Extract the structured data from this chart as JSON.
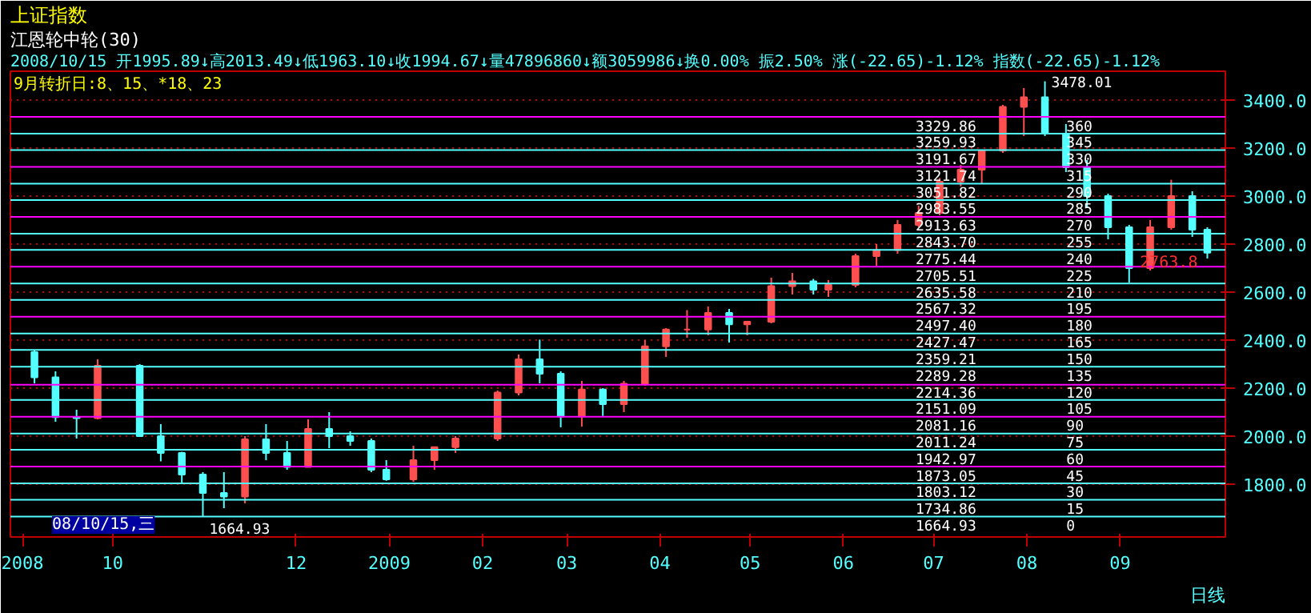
{
  "chart_data": {
    "type": "candlestick",
    "title": "上证指数",
    "subtitle": "江恩轮中轮(30)",
    "x": [
      "2008-09-05",
      "2008-09-12",
      "2008-09-19",
      "2008-09-26",
      "2008-10-10",
      "2008-10-17",
      "2008-10-24",
      "2008-10-31",
      "2008-11-07",
      "2008-11-14",
      "2008-11-21",
      "2008-11-28",
      "2008-12-05",
      "2008-12-12",
      "2008-12-19",
      "2008-12-26",
      "2008-12-31",
      "2009-01-09",
      "2009-01-16",
      "2009-01-23",
      "2009-02-06",
      "2009-02-13",
      "2009-02-20",
      "2009-02-27",
      "2009-03-06",
      "2009-03-13",
      "2009-03-20",
      "2009-03-27",
      "2009-04-03",
      "2009-04-10",
      "2009-04-17",
      "2009-04-24",
      "2009-04-30",
      "2009-05-08",
      "2009-05-15",
      "2009-05-22",
      "2009-05-27",
      "2009-06-05",
      "2009-06-12",
      "2009-06-19",
      "2009-06-26",
      "2009-07-03",
      "2009-07-10",
      "2009-07-17",
      "2009-07-24",
      "2009-07-31",
      "2009-08-07",
      "2009-08-14",
      "2009-08-21",
      "2009-08-28",
      "2009-09-04",
      "2009-09-11",
      "2009-09-18",
      "2009-09-25",
      "2009-09-30"
    ],
    "ohlc": [
      [
        2350,
        2360,
        2220,
        2245
      ],
      [
        2245,
        2270,
        2060,
        2079
      ],
      [
        2079,
        2110,
        1990,
        2075
      ],
      [
        2075,
        2320,
        2070,
        2293
      ],
      [
        2293,
        2300,
        2000,
        2000
      ],
      [
        2000,
        2050,
        1895,
        1930
      ],
      [
        1930,
        1935,
        1800,
        1840
      ],
      [
        1840,
        1850,
        1664.93,
        1763
      ],
      [
        1763,
        1850,
        1700,
        1748
      ],
      [
        1748,
        2000,
        1720,
        1987
      ],
      [
        1987,
        2050,
        1900,
        1930
      ],
      [
        1930,
        1980,
        1860,
        1872
      ],
      [
        1872,
        2070,
        1870,
        2030
      ],
      [
        2030,
        2100,
        1950,
        2000
      ],
      [
        2000,
        2020,
        1960,
        1980
      ],
      [
        1980,
        1990,
        1850,
        1860
      ],
      [
        1860,
        1900,
        1814,
        1820
      ],
      [
        1820,
        1960,
        1810,
        1900
      ],
      [
        1900,
        1955,
        1860,
        1954
      ],
      [
        1954,
        2000,
        1930,
        1990
      ],
      [
        1990,
        2190,
        1980,
        2182
      ],
      [
        2182,
        2340,
        2170,
        2320
      ],
      [
        2320,
        2402,
        2220,
        2260
      ],
      [
        2260,
        2270,
        2037,
        2082
      ],
      [
        2082,
        2230,
        2040,
        2194
      ],
      [
        2194,
        2200,
        2084,
        2133
      ],
      [
        2133,
        2230,
        2100,
        2218
      ],
      [
        2218,
        2400,
        2210,
        2374
      ],
      [
        2374,
        2450,
        2330,
        2444
      ],
      [
        2444,
        2525,
        2410,
        2444
      ],
      [
        2444,
        2540,
        2420,
        2513
      ],
      [
        2513,
        2530,
        2390,
        2466
      ],
      [
        2466,
        2480,
        2420,
        2477
      ],
      [
        2477,
        2660,
        2470,
        2625
      ],
      [
        2625,
        2680,
        2590,
        2645
      ],
      [
        2645,
        2655,
        2590,
        2610
      ],
      [
        2610,
        2650,
        2580,
        2630
      ],
      [
        2630,
        2760,
        2620,
        2750
      ],
      [
        2750,
        2800,
        2710,
        2775
      ],
      [
        2775,
        2900,
        2760,
        2880
      ],
      [
        2880,
        2960,
        2870,
        2930
      ],
      [
        2930,
        3075,
        2920,
        3060
      ],
      [
        3060,
        3130,
        3040,
        3110
      ],
      [
        3110,
        3190,
        3050,
        3189
      ],
      [
        3189,
        3380,
        3180,
        3372
      ],
      [
        3372,
        3450,
        3250,
        3412
      ],
      [
        3412,
        3478.01,
        3250,
        3260
      ],
      [
        3260,
        3300,
        3100,
        3120
      ],
      [
        3120,
        3150,
        2950,
        3000
      ],
      [
        3000,
        3010,
        2820,
        2870
      ],
      [
        2870,
        2880,
        2639,
        2700
      ],
      [
        2700,
        2900,
        2690,
        2870
      ],
      [
        2870,
        3068,
        2860,
        3000
      ],
      [
        3000,
        3020,
        2830,
        2860
      ],
      [
        2860,
        2870,
        2740,
        2763.8
      ]
    ],
    "xlim": [
      "2008-08-28",
      "2009-10-06"
    ],
    "xticks": [
      {
        "value": "2008-09-01",
        "label": "2008"
      },
      {
        "value": "2008-10-01",
        "label": "10"
      },
      {
        "value": "2008-12-01",
        "label": "12"
      },
      {
        "value": "2009-01-01",
        "label": "2009"
      },
      {
        "value": "2009-02-01",
        "label": "02"
      },
      {
        "value": "2009-03-01",
        "label": "03"
      },
      {
        "value": "2009-04-01",
        "label": "04"
      },
      {
        "value": "2009-05-01",
        "label": "05"
      },
      {
        "value": "2009-06-01",
        "label": "06"
      },
      {
        "value": "2009-07-01",
        "label": "07"
      },
      {
        "value": "2009-08-01",
        "label": "08"
      },
      {
        "value": "2009-09-01",
        "label": "09"
      }
    ],
    "ylim": [
      1580,
      3520
    ],
    "yticks": [
      {
        "value": 1800,
        "label": "1800.0"
      },
      {
        "value": 2000,
        "label": "2000.0"
      },
      {
        "value": 2200,
        "label": "2200.0"
      },
      {
        "value": 2400,
        "label": "2400.0"
      },
      {
        "value": 2600,
        "label": "2600.0"
      },
      {
        "value": 2800,
        "label": "2800.0"
      },
      {
        "value": 3000,
        "label": "3000.0"
      },
      {
        "value": 3200,
        "label": "3200.0"
      },
      {
        "value": 3400,
        "label": "3400.0"
      }
    ],
    "grid": "y",
    "ref_lines": [
      {
        "axis": "y",
        "value": 3329.86,
        "label": "3329.86",
        "color": "#ff00ff"
      },
      {
        "axis": "y",
        "value": 3259.93,
        "label": "3259.93",
        "color": "#54ffff"
      },
      {
        "axis": "y",
        "value": 3191.67,
        "label": "3191.67",
        "color": "#54ffff"
      },
      {
        "axis": "y",
        "value": 3121.74,
        "label": "3121.74",
        "color": "#ff00ff"
      },
      {
        "axis": "y",
        "value": 3051.82,
        "label": "3051.82",
        "color": "#54ffff"
      },
      {
        "axis": "y",
        "value": 2983.55,
        "label": "2983.55",
        "color": "#54ffff"
      },
      {
        "axis": "y",
        "value": 2913.63,
        "label": "2913.63",
        "color": "#ff00ff"
      },
      {
        "axis": "y",
        "value": 2843.7,
        "label": "2843.70",
        "color": "#54ffff"
      },
      {
        "axis": "y",
        "value": 2775.44,
        "label": "2775.44",
        "color": "#54ffff"
      },
      {
        "axis": "y",
        "value": 2705.51,
        "label": "2705.51",
        "color": "#ff00ff"
      },
      {
        "axis": "y",
        "value": 2635.58,
        "label": "2635.58",
        "color": "#54ffff"
      },
      {
        "axis": "y",
        "value": 2567.32,
        "label": "2567.32",
        "color": "#54ffff"
      },
      {
        "axis": "y",
        "value": 2497.4,
        "label": "2497.40",
        "color": "#ff00ff"
      },
      {
        "axis": "y",
        "value": 2427.47,
        "label": "2427.47",
        "color": "#54ffff"
      },
      {
        "axis": "y",
        "value": 2359.21,
        "label": "2359.21",
        "color": "#54ffff"
      },
      {
        "axis": "y",
        "value": 2289.28,
        "label": "2289.28",
        "color": "#54ffff"
      },
      {
        "axis": "y",
        "value": 2214.36,
        "label": "2214.36",
        "color": "#ff00ff"
      },
      {
        "axis": "y",
        "value": 2151.09,
        "label": "2151.09",
        "color": "#54ffff"
      },
      {
        "axis": "y",
        "value": 2081.16,
        "label": "2081.16",
        "color": "#ff00ff"
      },
      {
        "axis": "y",
        "value": 2011.24,
        "label": "2011.24",
        "color": "#54ffff"
      },
      {
        "axis": "y",
        "value": 1942.97,
        "label": "1942.97",
        "color": "#54ffff"
      },
      {
        "axis": "y",
        "value": 1873.05,
        "label": "1873.05",
        "color": "#ff00ff"
      },
      {
        "axis": "y",
        "value": 1803.12,
        "label": "1803.12",
        "color": "#54ffff"
      },
      {
        "axis": "y",
        "value": 1734.86,
        "label": "1734.86",
        "color": "#54ffff"
      },
      {
        "axis": "y",
        "value": 1664.93,
        "label": "1664.93",
        "color": "#54ffff"
      }
    ],
    "annotations": [
      "2008/10/15 开1995.89↓高2013.49↓低1963.10↓收1994.67↓量47896860↓额3059986↓换0.00% 振2.50% 涨(-22.65)-1.12% 指数(-22.65)-1.12%",
      "9月转折日:8、15、*18、23",
      "08/10/15,三",
      "日线",
      {
        "text": "3478.01",
        "x": "2009-08-07",
        "y": 3478.01
      },
      {
        "text": "1664.93",
        "x": "2008-10-31",
        "y": 1664.93
      },
      {
        "text": "2763.8",
        "x": "2009-09-30",
        "y": 2763.8
      },
      {
        "text": "360",
        "x": "2009-08-12",
        "y": 3329.86
      },
      {
        "text": "345",
        "x": "2009-08-12",
        "y": 3259.93
      },
      {
        "text": "330",
        "x": "2009-08-12",
        "y": 3191.67
      },
      {
        "text": "315",
        "x": "2009-08-12",
        "y": 3121.74
      },
      {
        "text": "290",
        "x": "2009-08-12",
        "y": 3051.82
      },
      {
        "text": "285",
        "x": "2009-08-12",
        "y": 2983.55
      },
      {
        "text": "270",
        "x": "2009-08-12",
        "y": 2913.63
      },
      {
        "text": "255",
        "x": "2009-08-12",
        "y": 2843.7
      },
      {
        "text": "240",
        "x": "2009-08-12",
        "y": 2775.44
      },
      {
        "text": "225",
        "x": "2009-08-12",
        "y": 2705.51
      },
      {
        "text": "210",
        "x": "2009-08-12",
        "y": 2635.58
      },
      {
        "text": "195",
        "x": "2009-08-12",
        "y": 2567.32
      },
      {
        "text": "180",
        "x": "2009-08-12",
        "y": 2497.4
      },
      {
        "text": "165",
        "x": "2009-08-12",
        "y": 2427.47
      },
      {
        "text": "150",
        "x": "2009-08-12",
        "y": 2359.21
      },
      {
        "text": "135",
        "x": "2009-08-12",
        "y": 2289.28
      },
      {
        "text": "120",
        "x": "2009-08-12",
        "y": 2214.36
      },
      {
        "text": "105",
        "x": "2009-08-12",
        "y": 2151.09
      },
      {
        "text": "90",
        "x": "2009-08-12",
        "y": 2081.16
      },
      {
        "text": "75",
        "x": "2009-08-12",
        "y": 2011.24
      },
      {
        "text": "60",
        "x": "2009-08-12",
        "y": 1942.97
      },
      {
        "text": "45",
        "x": "2009-08-12",
        "y": 1873.05
      },
      {
        "text": "30",
        "x": "2009-08-12",
        "y": 1803.12
      },
      {
        "text": "15",
        "x": "2009-08-12",
        "y": 1734.86
      },
      {
        "text": "0",
        "x": "2009-08-12",
        "y": 1664.93
      }
    ]
  }
}
